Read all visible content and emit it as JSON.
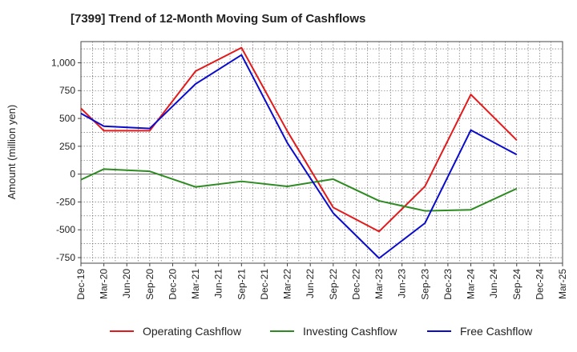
{
  "chart_data": {
    "type": "line",
    "title": "[7399]  Trend of 12-Month Moving Sum of Cashflows",
    "ylabel": "Amount (million yen)",
    "xlabel": "",
    "categories": [
      "Dec-19",
      "Mar-20",
      "Jun-20",
      "Sep-20",
      "Dec-20",
      "Mar-21",
      "Jun-21",
      "Sep-21",
      "Dec-21",
      "Mar-22",
      "Jun-22",
      "Sep-22",
      "Dec-22",
      "Mar-23",
      "Jun-23",
      "Sep-23",
      "Dec-23",
      "Mar-24",
      "Jun-24",
      "Sep-24",
      "Dec-24",
      "Mar-25"
    ],
    "yticks": [
      -750,
      -500,
      -250,
      0,
      250,
      500,
      750,
      1000
    ],
    "ytick_labels": [
      "-750",
      "-500",
      "-250",
      "0",
      "250",
      "500",
      "750",
      "1,000"
    ],
    "ylim": [
      -800,
      1190
    ],
    "grid": true,
    "legend_position": "bottom",
    "series": [
      {
        "name": "Operating Cashflow",
        "color": "#e31a1c",
        "values": [
          590,
          390,
          null,
          390,
          null,
          925,
          null,
          1135,
          null,
          385,
          null,
          -300,
          null,
          -515,
          null,
          -110,
          null,
          715,
          null,
          305,
          null,
          null
        ]
      },
      {
        "name": "Investing Cashflow",
        "color": "#2e8b22",
        "values": [
          -50,
          45,
          null,
          25,
          null,
          -115,
          null,
          -65,
          null,
          -110,
          null,
          -45,
          null,
          -240,
          null,
          -330,
          null,
          -320,
          null,
          -130,
          null,
          null
        ]
      },
      {
        "name": "Free Cashflow",
        "color": "#0b0bcc",
        "values": [
          545,
          430,
          null,
          410,
          null,
          810,
          null,
          1070,
          null,
          280,
          null,
          -350,
          null,
          -755,
          null,
          -440,
          null,
          395,
          null,
          175,
          null,
          null
        ]
      }
    ]
  }
}
